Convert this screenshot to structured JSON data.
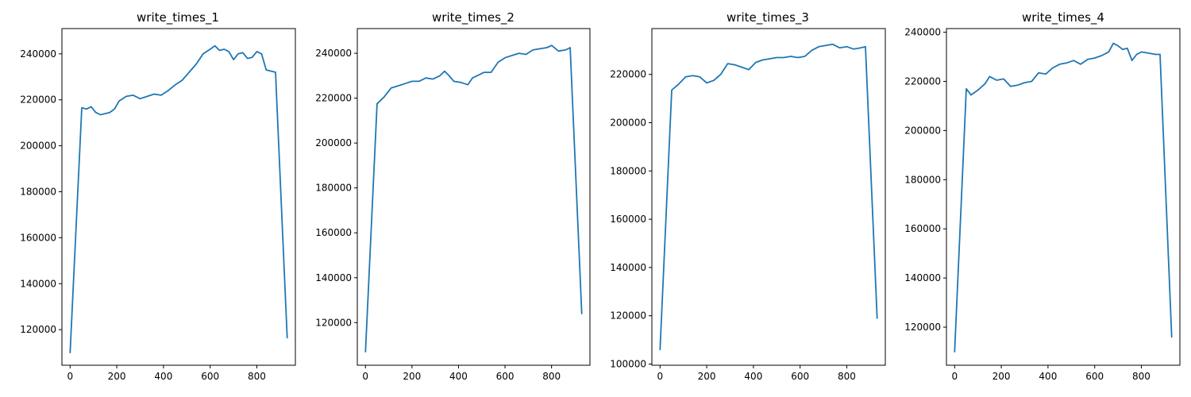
{
  "chart_data": [
    {
      "type": "line",
      "title": "write_times_1",
      "xlim": [
        -35,
        965
      ],
      "ylim": [
        104500,
        251000
      ],
      "xticks": [
        0,
        200,
        400,
        600,
        800
      ],
      "yticks": [
        120000,
        140000,
        160000,
        180000,
        200000,
        220000,
        240000
      ],
      "x": [
        0,
        50,
        70,
        90,
        110,
        130,
        150,
        170,
        190,
        210,
        240,
        270,
        300,
        330,
        360,
        390,
        420,
        450,
        480,
        510,
        540,
        570,
        600,
        620,
        640,
        660,
        680,
        700,
        720,
        740,
        760,
        780,
        800,
        820,
        840,
        860,
        880,
        930
      ],
      "values": [
        110000,
        216500,
        216000,
        217000,
        214500,
        213500,
        214000,
        214500,
        216000,
        219500,
        221500,
        222000,
        220500,
        221500,
        222500,
        222000,
        224000,
        226500,
        228500,
        232000,
        235500,
        240000,
        242000,
        243500,
        241500,
        242000,
        241000,
        237500,
        240000,
        240500,
        238000,
        238500,
        241000,
        240000,
        233000,
        232500,
        232000,
        116500
      ],
      "line_color": "#1f77b4"
    },
    {
      "type": "line",
      "title": "write_times_2",
      "xlim": [
        -35,
        965
      ],
      "ylim": [
        101000,
        251000
      ],
      "xticks": [
        0,
        200,
        400,
        600,
        800
      ],
      "yticks": [
        120000,
        140000,
        160000,
        180000,
        200000,
        220000,
        240000
      ],
      "x": [
        0,
        50,
        80,
        110,
        140,
        170,
        200,
        230,
        260,
        290,
        320,
        340,
        360,
        380,
        410,
        440,
        460,
        480,
        510,
        540,
        570,
        600,
        630,
        660,
        690,
        720,
        750,
        780,
        800,
        830,
        860,
        880,
        930
      ],
      "values": [
        107000,
        217500,
        220500,
        224500,
        225500,
        226500,
        227500,
        227500,
        229000,
        228500,
        230000,
        232000,
        230000,
        227500,
        227000,
        226000,
        229000,
        230000,
        231500,
        231500,
        236000,
        238000,
        239000,
        240000,
        239500,
        241500,
        242000,
        242500,
        243500,
        241000,
        241500,
        242500,
        124000
      ],
      "line_color": "#1f77b4"
    },
    {
      "type": "line",
      "title": "write_times_3",
      "xlim": [
        -35,
        965
      ],
      "ylim": [
        99500,
        239000
      ],
      "xticks": [
        0,
        200,
        400,
        600,
        800
      ],
      "yticks": [
        100000,
        120000,
        140000,
        160000,
        180000,
        200000,
        220000
      ],
      "x": [
        0,
        50,
        80,
        110,
        140,
        170,
        200,
        230,
        260,
        290,
        320,
        350,
        380,
        410,
        440,
        470,
        500,
        530,
        560,
        590,
        620,
        650,
        680,
        710,
        740,
        770,
        800,
        830,
        860,
        880,
        930
      ],
      "values": [
        106000,
        213500,
        216000,
        219000,
        219500,
        219000,
        216500,
        217500,
        220000,
        224500,
        224000,
        223000,
        222000,
        225000,
        226000,
        226500,
        227000,
        227000,
        227500,
        227000,
        227500,
        230000,
        231500,
        232000,
        232500,
        231000,
        231500,
        230500,
        231000,
        231500,
        119000
      ],
      "line_color": "#1f77b4"
    },
    {
      "type": "line",
      "title": "write_times_4",
      "xlim": [
        -35,
        965
      ],
      "ylim": [
        104500,
        241500
      ],
      "xticks": [
        0,
        200,
        400,
        600,
        800
      ],
      "yticks": [
        120000,
        140000,
        160000,
        180000,
        200000,
        220000,
        240000
      ],
      "x": [
        0,
        50,
        70,
        100,
        130,
        150,
        180,
        210,
        240,
        270,
        300,
        330,
        360,
        390,
        420,
        450,
        480,
        510,
        540,
        570,
        600,
        630,
        660,
        680,
        700,
        720,
        740,
        760,
        780,
        800,
        830,
        860,
        880,
        930
      ],
      "values": [
        110000,
        217000,
        214500,
        216500,
        219000,
        222000,
        220500,
        221000,
        218000,
        218500,
        219500,
        220000,
        223500,
        223000,
        225500,
        227000,
        227500,
        228500,
        227000,
        229000,
        229500,
        230500,
        232000,
        235500,
        234500,
        233000,
        233500,
        228500,
        231000,
        232000,
        231500,
        231000,
        231000,
        116000
      ],
      "line_color": "#1f77b4"
    }
  ]
}
